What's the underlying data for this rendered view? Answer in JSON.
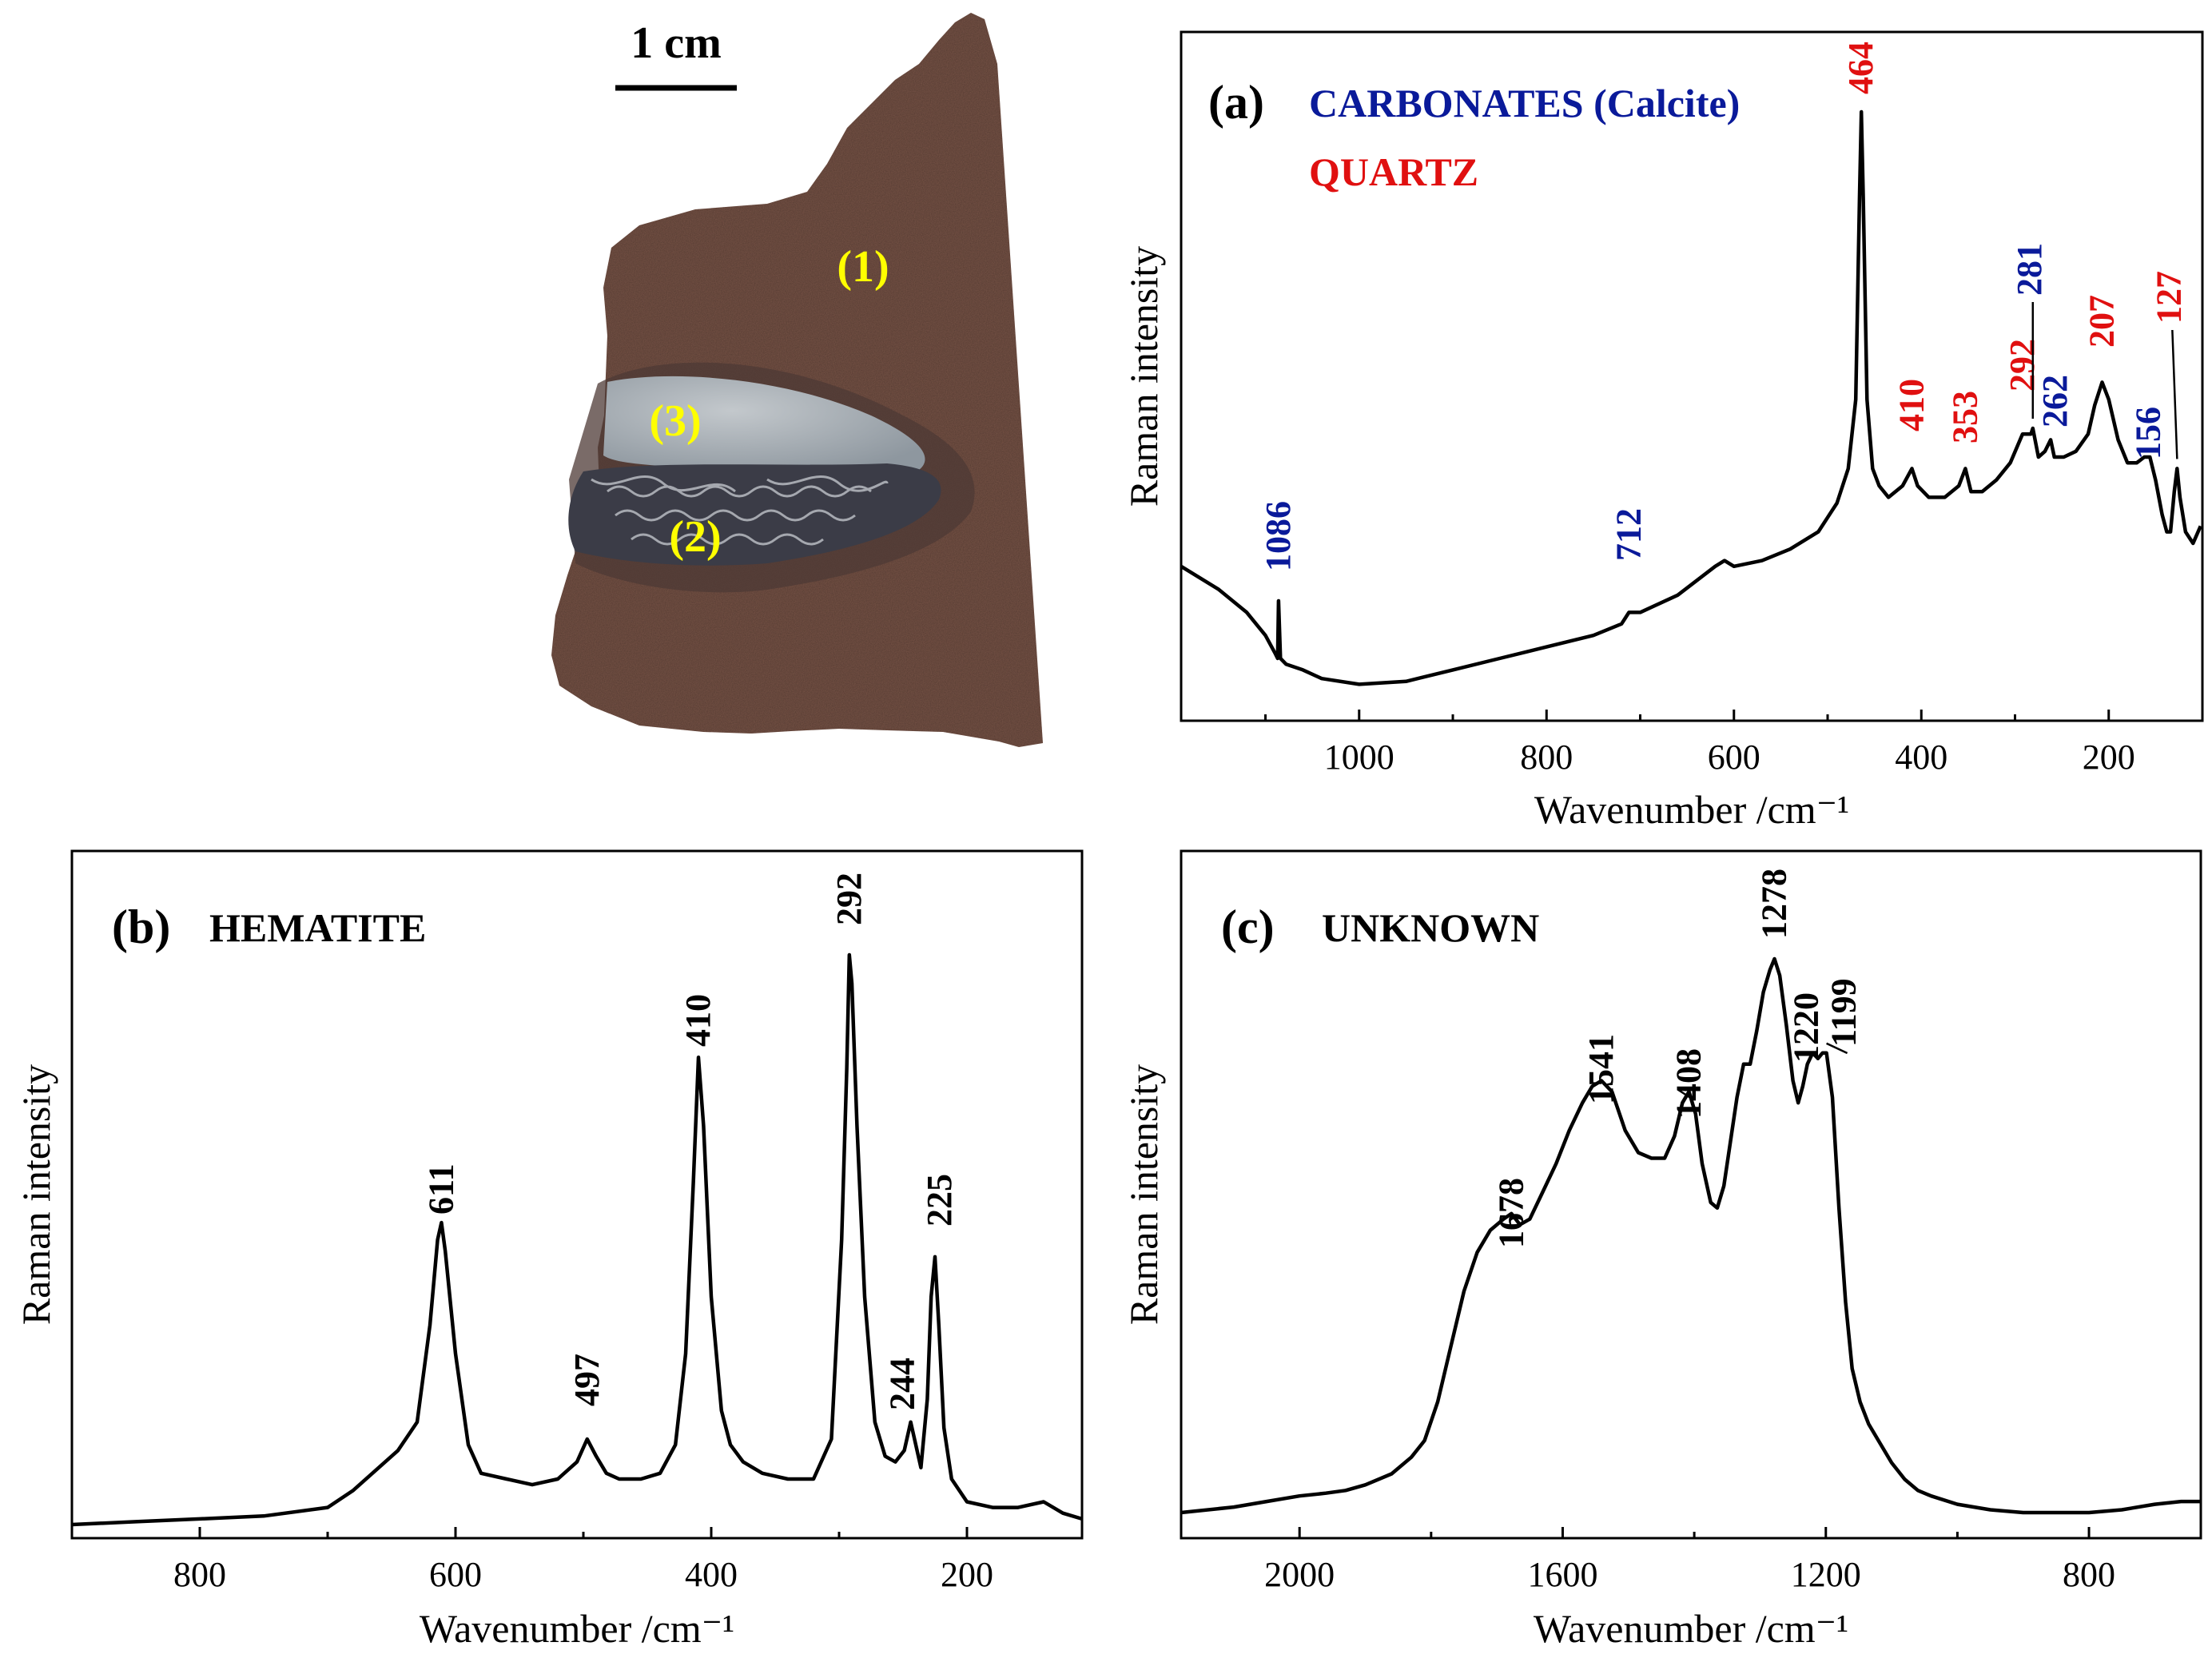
{
  "figure": {
    "photo": {
      "scale_label": "1 cm",
      "region_labels": [
        "(1)",
        "(3)",
        "(2)"
      ],
      "colors": {
        "rock": "#7a5548",
        "lens": "#a7aeb4",
        "crust": "#3e3f48",
        "label": "#ffff00"
      }
    },
    "colors": {
      "black": "#000000",
      "blue": "#0a1a9a",
      "red": "#e01010"
    }
  },
  "chart_data": [
    {
      "id": "a",
      "type": "line",
      "panel_label": "(a)",
      "titles": [
        {
          "text": "CARBONATES (Calcite)",
          "color": "blue"
        },
        {
          "text": "QUARTZ",
          "color": "red"
        }
      ],
      "xlabel": "Wavenumber /cm⁻¹",
      "ylabel": "Raman intensity",
      "xlim": [
        1190,
        100
      ],
      "ylim": [
        0,
        100
      ],
      "xticks": [
        1000,
        800,
        600,
        400,
        200
      ],
      "xminor": [
        1100,
        900,
        700,
        500,
        300
      ],
      "series": [
        {
          "name": "spectrum",
          "points": [
            [
              1190,
              21
            ],
            [
              1150,
              17
            ],
            [
              1120,
              13
            ],
            [
              1100,
              9
            ],
            [
              1090,
              6
            ],
            [
              1087,
              5
            ],
            [
              1086,
              15
            ],
            [
              1084,
              5
            ],
            [
              1078,
              4
            ],
            [
              1060,
              3
            ],
            [
              1040,
              1.5
            ],
            [
              1000,
              0.5
            ],
            [
              950,
              1
            ],
            [
              900,
              3
            ],
            [
              850,
              5
            ],
            [
              800,
              7
            ],
            [
              750,
              9
            ],
            [
              720,
              11
            ],
            [
              712,
              13
            ],
            [
              700,
              13
            ],
            [
              660,
              16
            ],
            [
              620,
              21
            ],
            [
              610,
              22
            ],
            [
              600,
              21
            ],
            [
              570,
              22
            ],
            [
              540,
              24
            ],
            [
              510,
              27
            ],
            [
              490,
              32
            ],
            [
              478,
              38
            ],
            [
              470,
              50
            ],
            [
              466,
              85
            ],
            [
              464,
              100
            ],
            [
              462,
              85
            ],
            [
              458,
              50
            ],
            [
              452,
              38
            ],
            [
              445,
              35
            ],
            [
              435,
              33
            ],
            [
              420,
              35
            ],
            [
              410,
              38
            ],
            [
              404,
              35
            ],
            [
              392,
              33
            ],
            [
              375,
              33
            ],
            [
              360,
              35
            ],
            [
              353,
              38
            ],
            [
              347,
              34
            ],
            [
              335,
              34
            ],
            [
              320,
              36
            ],
            [
              305,
              39
            ],
            [
              292,
              44
            ],
            [
              283,
              44
            ],
            [
              281,
              45
            ],
            [
              275,
              40
            ],
            [
              268,
              41
            ],
            [
              262,
              43
            ],
            [
              258,
              40
            ],
            [
              248,
              40
            ],
            [
              235,
              41
            ],
            [
              222,
              44
            ],
            [
              215,
              49
            ],
            [
              207,
              53
            ],
            [
              200,
              50
            ],
            [
              190,
              43
            ],
            [
              180,
              39
            ],
            [
              170,
              39
            ],
            [
              162,
              40
            ],
            [
              156,
              40
            ],
            [
              150,
              36
            ],
            [
              143,
              30
            ],
            [
              138,
              27
            ],
            [
              134,
              27
            ],
            [
              130,
              34
            ],
            [
              127,
              38
            ],
            [
              124,
              33
            ],
            [
              118,
              27
            ],
            [
              110,
              25
            ],
            [
              102,
              28
            ]
          ]
        }
      ],
      "peak_labels": [
        {
          "x": 1086,
          "text": "1086",
          "color": "blue"
        },
        {
          "x": 712,
          "text": "712",
          "color": "blue"
        },
        {
          "x": 464,
          "text": "464",
          "color": "red"
        },
        {
          "x": 410,
          "text": "410",
          "color": "red"
        },
        {
          "x": 353,
          "text": "353",
          "color": "red"
        },
        {
          "x": 292,
          "text": "292",
          "color": "red"
        },
        {
          "x": 281,
          "text": "281",
          "color": "blue"
        },
        {
          "x": 262,
          "text": "262",
          "color": "blue"
        },
        {
          "x": 207,
          "text": "207",
          "color": "red"
        },
        {
          "x": 156,
          "text": "156",
          "color": "blue"
        },
        {
          "x": 127,
          "text": "127",
          "color": "red"
        }
      ]
    },
    {
      "id": "b",
      "type": "line",
      "panel_label": "(b)",
      "titles": [
        {
          "text": "HEMATITE",
          "color": "black"
        }
      ],
      "xlabel": "Wavenumber /cm⁻¹",
      "ylabel": "Raman intensity",
      "xlim": [
        900,
        110
      ],
      "ylim": [
        0,
        100
      ],
      "xticks": [
        800,
        600,
        400,
        200
      ],
      "xminor": [
        700,
        500,
        300
      ],
      "series": [
        {
          "name": "spectrum",
          "points": [
            [
              900,
              0
            ],
            [
              850,
              0.5
            ],
            [
              800,
              1
            ],
            [
              750,
              1.5
            ],
            [
              700,
              3
            ],
            [
              680,
              6
            ],
            [
              660,
              10
            ],
            [
              645,
              13
            ],
            [
              630,
              18
            ],
            [
              620,
              35
            ],
            [
              614,
              50
            ],
            [
              611,
              53
            ],
            [
              608,
              48
            ],
            [
              600,
              30
            ],
            [
              590,
              14
            ],
            [
              580,
              9
            ],
            [
              560,
              8
            ],
            [
              540,
              7
            ],
            [
              520,
              8
            ],
            [
              505,
              11
            ],
            [
              497,
              15
            ],
            [
              490,
              12
            ],
            [
              482,
              9
            ],
            [
              472,
              8
            ],
            [
              455,
              8
            ],
            [
              440,
              9
            ],
            [
              428,
              14
            ],
            [
              420,
              30
            ],
            [
              414,
              60
            ],
            [
              410,
              82
            ],
            [
              406,
              70
            ],
            [
              400,
              40
            ],
            [
              392,
              20
            ],
            [
              385,
              14
            ],
            [
              375,
              11
            ],
            [
              360,
              9
            ],
            [
              340,
              8
            ],
            [
              320,
              8
            ],
            [
              306,
              15
            ],
            [
              298,
              50
            ],
            [
              294,
              80
            ],
            [
              292,
              100
            ],
            [
              290,
              95
            ],
            [
              286,
              70
            ],
            [
              280,
              40
            ],
            [
              272,
              18
            ],
            [
              264,
              12
            ],
            [
              256,
              11
            ],
            [
              249,
              13
            ],
            [
              244,
              18
            ],
            [
              240,
              14
            ],
            [
              236,
              10
            ],
            [
              231,
              22
            ],
            [
              228,
              40
            ],
            [
              225,
              47
            ],
            [
              222,
              35
            ],
            [
              218,
              17
            ],
            [
              212,
              8
            ],
            [
              200,
              4
            ],
            [
              180,
              3
            ],
            [
              160,
              3
            ],
            [
              140,
              4
            ],
            [
              125,
              2
            ],
            [
              110,
              1
            ]
          ]
        }
      ],
      "peak_labels": [
        {
          "x": 611,
          "text": "611",
          "color": "black"
        },
        {
          "x": 497,
          "text": "497",
          "color": "black"
        },
        {
          "x": 410,
          "text": "410",
          "color": "black"
        },
        {
          "x": 292,
          "text": "292",
          "color": "black"
        },
        {
          "x": 244,
          "text": "244",
          "color": "black"
        },
        {
          "x": 225,
          "text": "225",
          "color": "black"
        }
      ]
    },
    {
      "id": "c",
      "type": "line",
      "panel_label": "(c)",
      "titles": [
        {
          "text": "UNKNOWN",
          "color": "black"
        }
      ],
      "xlabel": "Wavenumber /cm⁻¹",
      "ylabel": "Raman intensity",
      "xlim": [
        2180,
        630
      ],
      "ylim": [
        0,
        100
      ],
      "xticks": [
        2000,
        1600,
        1200,
        800
      ],
      "xminor": [
        1800,
        1400,
        1000
      ],
      "series": [
        {
          "name": "spectrum",
          "points": [
            [
              2180,
              0
            ],
            [
              2100,
              1
            ],
            [
              2050,
              2
            ],
            [
              2000,
              3
            ],
            [
              1960,
              3.5
            ],
            [
              1930,
              4
            ],
            [
              1900,
              5
            ],
            [
              1860,
              7
            ],
            [
              1830,
              10
            ],
            [
              1810,
              13
            ],
            [
              1790,
              20
            ],
            [
              1770,
              30
            ],
            [
              1750,
              40
            ],
            [
              1730,
              47
            ],
            [
              1710,
              51
            ],
            [
              1690,
              53
            ],
            [
              1678,
              54
            ],
            [
              1665,
              52
            ],
            [
              1650,
              53
            ],
            [
              1630,
              58
            ],
            [
              1610,
              63
            ],
            [
              1590,
              69
            ],
            [
              1570,
              74
            ],
            [
              1555,
              77
            ],
            [
              1541,
              78
            ],
            [
              1525,
              76
            ],
            [
              1505,
              69
            ],
            [
              1485,
              65
            ],
            [
              1465,
              64
            ],
            [
              1445,
              64
            ],
            [
              1430,
              68
            ],
            [
              1418,
              74
            ],
            [
              1408,
              76
            ],
            [
              1398,
              72
            ],
            [
              1388,
              63
            ],
            [
              1375,
              56
            ],
            [
              1365,
              55
            ],
            [
              1355,
              59
            ],
            [
              1345,
              67
            ],
            [
              1335,
              75
            ],
            [
              1325,
              81
            ],
            [
              1315,
              81
            ],
            [
              1305,
              87
            ],
            [
              1295,
              94
            ],
            [
              1285,
              98
            ],
            [
              1278,
              100
            ],
            [
              1270,
              97
            ],
            [
              1260,
              88
            ],
            [
              1250,
              78
            ],
            [
              1242,
              74
            ],
            [
              1235,
              77
            ],
            [
              1228,
              81
            ],
            [
              1220,
              83
            ],
            [
              1212,
              82
            ],
            [
              1205,
              83
            ],
            [
              1199,
              83
            ],
            [
              1190,
              75
            ],
            [
              1180,
              55
            ],
            [
              1170,
              38
            ],
            [
              1160,
              26
            ],
            [
              1148,
              20
            ],
            [
              1135,
              16
            ],
            [
              1120,
              13
            ],
            [
              1100,
              9
            ],
            [
              1080,
              6
            ],
            [
              1060,
              4
            ],
            [
              1040,
              3
            ],
            [
              1000,
              1.5
            ],
            [
              950,
              0.5
            ],
            [
              900,
              0
            ],
            [
              850,
              0
            ],
            [
              800,
              0
            ],
            [
              750,
              0.5
            ],
            [
              700,
              1.5
            ],
            [
              660,
              2
            ],
            [
              630,
              2
            ]
          ]
        }
      ],
      "peak_labels": [
        {
          "x": 1678,
          "text": "1678",
          "color": "black"
        },
        {
          "x": 1541,
          "text": "1541",
          "color": "black"
        },
        {
          "x": 1408,
          "text": "1408",
          "color": "black"
        },
        {
          "x": 1278,
          "text": "1278",
          "color": "black"
        },
        {
          "x": 1220,
          "text": "1220",
          "color": "black"
        },
        {
          "x": 1199,
          "text": "1199",
          "color": "black"
        }
      ]
    }
  ]
}
